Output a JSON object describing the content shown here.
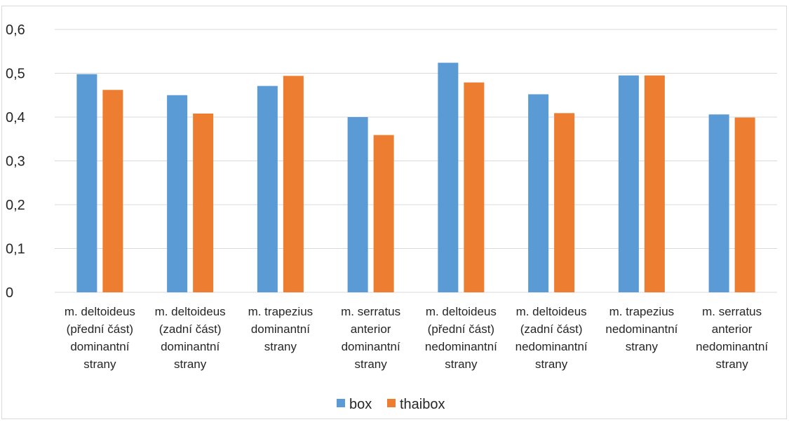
{
  "chart_data": {
    "type": "bar",
    "categories": [
      [
        "m. deltoideus",
        "(přední část)",
        "dominantní",
        "strany"
      ],
      [
        "m. deltoideus",
        "(zadní část)",
        "dominantní",
        "strany"
      ],
      [
        "m. trapezius",
        "dominantní",
        "strany"
      ],
      [
        "m. serratus",
        "anterior",
        "dominantní",
        "strany"
      ],
      [
        "m. deltoideus",
        "(přední část)",
        "nedominantní",
        "strany"
      ],
      [
        "m. deltoideus",
        "(zadní část)",
        "nedominantní",
        "strany"
      ],
      [
        "m. trapezius",
        "nedominantní",
        "strany"
      ],
      [
        "m. serratus",
        "anterior",
        "nedominantní",
        "strany"
      ]
    ],
    "series": [
      {
        "name": "box",
        "color": "#5b9bd5",
        "values": [
          0.498,
          0.45,
          0.471,
          0.4,
          0.524,
          0.452,
          0.495,
          0.406
        ]
      },
      {
        "name": "thaibox",
        "color": "#ed7d31",
        "values": [
          0.462,
          0.408,
          0.494,
          0.359,
          0.479,
          0.409,
          0.495,
          0.399
        ]
      }
    ],
    "yticks": [
      "0",
      "0,1",
      "0,2",
      "0,3",
      "0,4",
      "0,5",
      "0,6"
    ],
    "ylim": [
      0,
      0.6
    ],
    "grid": true,
    "legend_position": "bottom",
    "gridline_color": "#d9d9d9",
    "text_color": "#262626"
  }
}
